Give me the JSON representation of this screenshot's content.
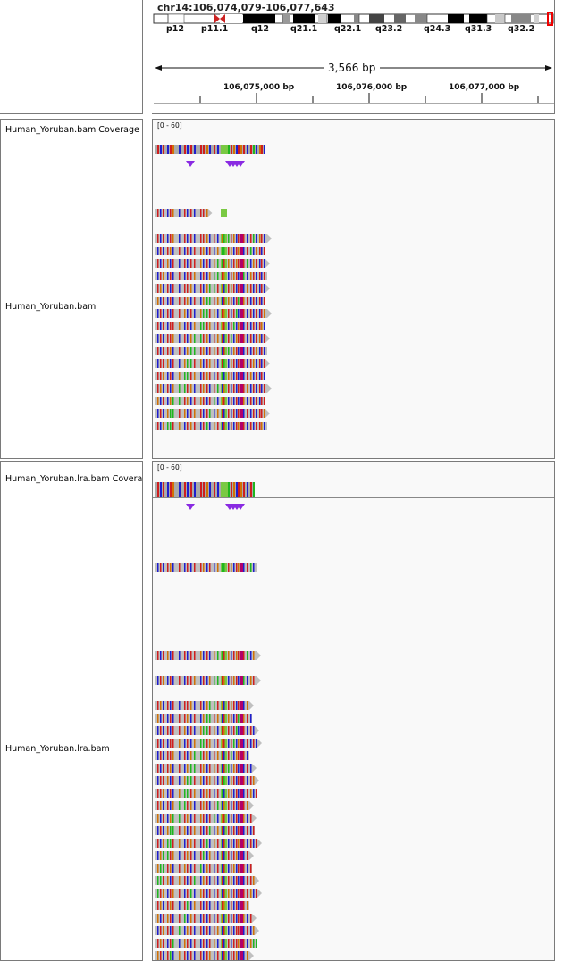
{
  "header": {
    "locus": "chr14:106,074,079-106,077,643",
    "span_label": "3,566 bp",
    "cytobands": [
      "p12",
      "p11.1",
      "q12",
      "q21.1",
      "q22.1",
      "q23.2",
      "q24.3",
      "q31.3",
      "q32.2"
    ],
    "ruler_ticks": [
      "106,075,000 bp",
      "106,076,000 bp",
      "106,077,000 bp"
    ]
  },
  "tracks": {
    "bam1_coverage": {
      "name": "Human_Yoruban.bam Coverage",
      "range": "[0 - 60]"
    },
    "bam1_alignments": {
      "name": "Human_Yoruban.bam"
    },
    "bam2_coverage": {
      "name": "Human_Yoruban.lra.bam Coverage",
      "range": "[0 - 60]"
    },
    "bam2_alignments": {
      "name": "Human_Yoruban.lra.bam"
    }
  },
  "colors": {
    "read": "#c0c0c0",
    "A": "#1fb61f",
    "C": "#1e1ecf",
    "G": "#d17105",
    "T": "#cf1e1e",
    "insertion": "#8a2be2",
    "centromere": "#cc2222"
  }
}
